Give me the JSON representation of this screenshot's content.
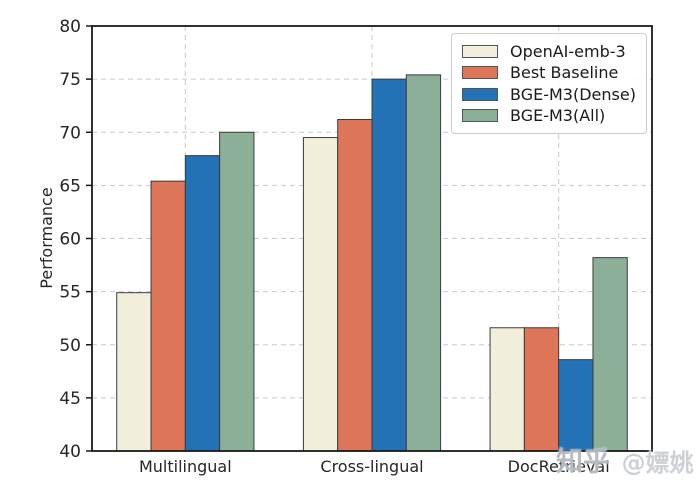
{
  "watermark": {
    "logo": "知乎",
    "user": "@嫖姚"
  },
  "chart_data": {
    "type": "bar",
    "title": "",
    "xlabel": "",
    "ylabel": "Performance",
    "categories": [
      "Multilingual",
      "Cross-lingual",
      "DocRetrieval"
    ],
    "series": [
      {
        "name": "OpenAI-emb-3",
        "color": "#F2EEDC",
        "values": [
          54.9,
          69.5,
          51.6
        ]
      },
      {
        "name": "Best Baseline",
        "color": "#DD7659",
        "values": [
          65.4,
          71.2,
          51.6
        ]
      },
      {
        "name": "BGE-M3(Dense)",
        "color": "#2272B5",
        "values": [
          67.8,
          75.0,
          48.6
        ]
      },
      {
        "name": "BGE-M3(All)",
        "color": "#8CAF98",
        "values": [
          70.0,
          75.4,
          58.2
        ]
      }
    ],
    "ylim": [
      40,
      80
    ],
    "yticks": [
      40,
      45,
      50,
      55,
      60,
      65,
      70,
      75,
      80
    ],
    "grid": true,
    "grid_style": "dashed",
    "legend_position": "upper right",
    "bar_edge_color": "#3b3b3b",
    "grid_color": "#c9c9c9",
    "axis_color": "#1a1a1a",
    "tick_label_color": "#262626"
  }
}
